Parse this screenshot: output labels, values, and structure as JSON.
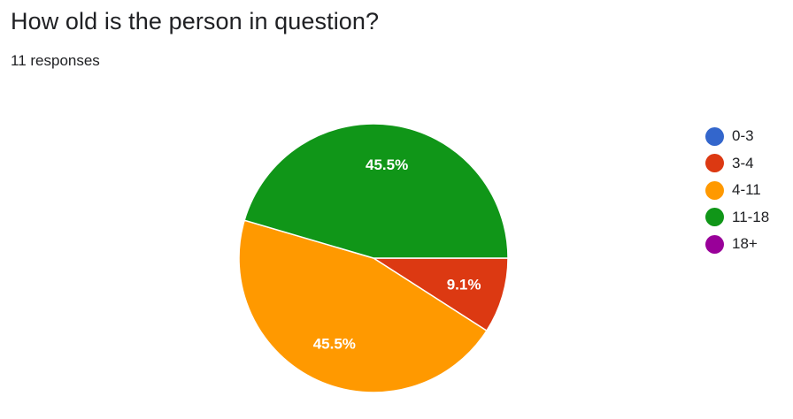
{
  "question": {
    "title": "How old is the person in question?",
    "responses": "11 responses"
  },
  "chart_data": {
    "type": "pie",
    "categories": [
      "0-3",
      "3-4",
      "4-11",
      "11-18",
      "18+"
    ],
    "values": [
      0,
      1,
      5,
      5,
      0
    ],
    "percent_labels": [
      "",
      "9.1%",
      "45.5%",
      "45.5%",
      ""
    ],
    "colors": [
      "#3366cc",
      "#dc3912",
      "#ff9900",
      "#109618",
      "#990099"
    ],
    "label_color": "#ffffff",
    "legend_placement": "right",
    "title": "",
    "xlabel": "",
    "ylabel": ""
  }
}
